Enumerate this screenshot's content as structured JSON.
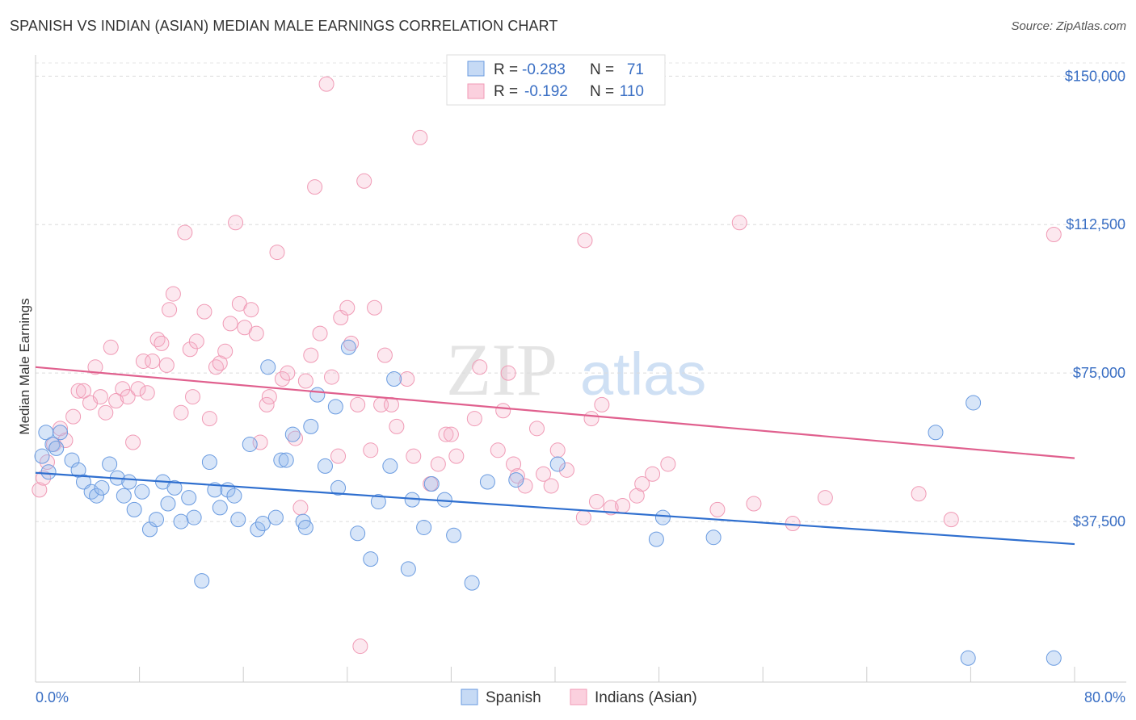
{
  "header": {
    "title": "SPANISH VS INDIAN (ASIAN) MEDIAN MALE EARNINGS CORRELATION CHART",
    "source": "Source: ZipAtlas.com"
  },
  "watermark": {
    "zip": "ZIP",
    "atlas": "atlas"
  },
  "legend_stats": [
    {
      "r_label": "R =",
      "r_value": "-0.283",
      "n_label": "N =",
      "n_value": "71"
    },
    {
      "r_label": "R =",
      "r_value": "-0.192",
      "n_label": "N =",
      "n_value": "110"
    }
  ],
  "bottom_legend": [
    "Spanish",
    "Indians (Asian)"
  ],
  "chart_data": {
    "type": "scatter",
    "title": "SPANISH VS INDIAN (ASIAN) MEDIAN MALE EARNINGS CORRELATION CHART",
    "ylabel": "Median Male Earnings",
    "xlabel": "",
    "xlim": [
      0,
      80
    ],
    "ylim": [
      0,
      157000
    ],
    "x_tick_labels": [
      "0.0%",
      "80.0%"
    ],
    "y_ticks": [
      37500,
      75000,
      112500,
      150000
    ],
    "y_tick_labels": [
      "$37,500",
      "$75,000",
      "$112,500",
      "$150,000"
    ],
    "grid": true,
    "legend_position": "top-center",
    "colors": {
      "spanish": "#6a9be0",
      "indian": "#f09ab5",
      "spanish_line": "#2f6fcf",
      "indian_line": "#e0608e",
      "tick_text": "#3a6fc4"
    },
    "series": [
      {
        "name": "Spanish",
        "r": -0.283,
        "n": 71,
        "trend": [
          [
            0,
            49800
          ],
          [
            80,
            31800
          ]
        ],
        "points": [
          [
            0.5,
            54000
          ],
          [
            0.8,
            60000
          ],
          [
            1.3,
            57000
          ],
          [
            1.6,
            56000
          ],
          [
            1.9,
            60000
          ],
          [
            2.8,
            53000
          ],
          [
            3.3,
            50500
          ],
          [
            3.7,
            47500
          ],
          [
            4.3,
            45000
          ],
          [
            4.7,
            44000
          ],
          [
            5.1,
            46000
          ],
          [
            5.7,
            52000
          ],
          [
            6.3,
            48500
          ],
          [
            6.8,
            44000
          ],
          [
            7.2,
            47500
          ],
          [
            7.6,
            40500
          ],
          [
            8.2,
            45000
          ],
          [
            8.8,
            35500
          ],
          [
            9.3,
            38000
          ],
          [
            9.8,
            47500
          ],
          [
            10.2,
            42000
          ],
          [
            10.7,
            46000
          ],
          [
            11.2,
            37500
          ],
          [
            11.8,
            43500
          ],
          [
            12.2,
            38500
          ],
          [
            12.8,
            22500
          ],
          [
            13.4,
            52500
          ],
          [
            13.8,
            45500
          ],
          [
            14.2,
            41000
          ],
          [
            14.8,
            45500
          ],
          [
            15.3,
            44000
          ],
          [
            15.6,
            38000
          ],
          [
            16.5,
            57000
          ],
          [
            17.1,
            35500
          ],
          [
            17.5,
            37000
          ],
          [
            17.9,
            76500
          ],
          [
            18.5,
            38500
          ],
          [
            18.9,
            53000
          ],
          [
            19.3,
            53000
          ],
          [
            19.8,
            59500
          ],
          [
            20.6,
            37500
          ],
          [
            20.8,
            36000
          ],
          [
            21.2,
            61500
          ],
          [
            21.7,
            69500
          ],
          [
            22.3,
            51500
          ],
          [
            23.1,
            66500
          ],
          [
            23.3,
            46000
          ],
          [
            24.1,
            81500
          ],
          [
            24.8,
            34500
          ],
          [
            25.8,
            28000
          ],
          [
            26.4,
            42500
          ],
          [
            27.3,
            51500
          ],
          [
            27.6,
            73500
          ],
          [
            28.7,
            25500
          ],
          [
            29.0,
            43000
          ],
          [
            29.9,
            36000
          ],
          [
            30.5,
            47000
          ],
          [
            31.5,
            43000
          ],
          [
            32.2,
            34000
          ],
          [
            33.6,
            22000
          ],
          [
            34.8,
            47500
          ],
          [
            37.0,
            48000
          ],
          [
            40.2,
            52000
          ],
          [
            47.8,
            33000
          ],
          [
            48.3,
            38500
          ],
          [
            52.2,
            33500
          ],
          [
            69.3,
            60000
          ],
          [
            72.2,
            67500
          ],
          [
            71.8,
            3000
          ],
          [
            78.4,
            3000
          ],
          [
            1.0,
            50000
          ]
        ]
      },
      {
        "name": "Indians (Asian)",
        "r": -0.192,
        "n": 110,
        "trend": [
          [
            0,
            76500
          ],
          [
            80,
            53500
          ]
        ],
        "points": [
          [
            0.3,
            45500
          ],
          [
            0.6,
            48500
          ],
          [
            0.9,
            52500
          ],
          [
            1.4,
            57000
          ],
          [
            1.9,
            61000
          ],
          [
            2.3,
            58000
          ],
          [
            2.9,
            64000
          ],
          [
            3.3,
            70500
          ],
          [
            3.7,
            70500
          ],
          [
            4.2,
            67500
          ],
          [
            4.6,
            76500
          ],
          [
            5.0,
            69000
          ],
          [
            5.4,
            65000
          ],
          [
            5.8,
            81500
          ],
          [
            6.2,
            68000
          ],
          [
            6.7,
            71000
          ],
          [
            7.1,
            69000
          ],
          [
            7.5,
            57500
          ],
          [
            7.9,
            71000
          ],
          [
            8.3,
            78000
          ],
          [
            8.6,
            70000
          ],
          [
            9.0,
            78000
          ],
          [
            9.4,
            83500
          ],
          [
            9.7,
            82500
          ],
          [
            10.1,
            77000
          ],
          [
            10.3,
            91000
          ],
          [
            10.6,
            95000
          ],
          [
            11.2,
            65000
          ],
          [
            11.5,
            110500
          ],
          [
            11.9,
            81000
          ],
          [
            12.1,
            69000
          ],
          [
            12.4,
            83000
          ],
          [
            13.0,
            90500
          ],
          [
            13.4,
            63500
          ],
          [
            13.9,
            76500
          ],
          [
            14.2,
            77500
          ],
          [
            14.6,
            80500
          ],
          [
            15.0,
            87500
          ],
          [
            15.4,
            113000
          ],
          [
            15.7,
            92500
          ],
          [
            16.1,
            86500
          ],
          [
            16.6,
            91000
          ],
          [
            17.0,
            85000
          ],
          [
            17.3,
            57500
          ],
          [
            17.8,
            67000
          ],
          [
            18.0,
            69000
          ],
          [
            18.6,
            105500
          ],
          [
            19.0,
            73500
          ],
          [
            19.4,
            75000
          ],
          [
            20.0,
            58500
          ],
          [
            20.4,
            41000
          ],
          [
            20.8,
            73000
          ],
          [
            21.2,
            79500
          ],
          [
            21.5,
            122000
          ],
          [
            21.9,
            85000
          ],
          [
            22.4,
            148000
          ],
          [
            22.8,
            74000
          ],
          [
            23.3,
            54000
          ],
          [
            23.5,
            89000
          ],
          [
            24.0,
            91500
          ],
          [
            24.3,
            82500
          ],
          [
            24.8,
            67000
          ],
          [
            25.3,
            123500
          ],
          [
            25.8,
            55500
          ],
          [
            26.1,
            91500
          ],
          [
            26.6,
            67000
          ],
          [
            26.9,
            79500
          ],
          [
            27.4,
            67000
          ],
          [
            27.8,
            61500
          ],
          [
            28.6,
            73500
          ],
          [
            29.1,
            54000
          ],
          [
            29.6,
            134500
          ],
          [
            30.4,
            47000
          ],
          [
            31.0,
            52000
          ],
          [
            31.6,
            59500
          ],
          [
            32.0,
            59500
          ],
          [
            32.4,
            54000
          ],
          [
            33.8,
            63500
          ],
          [
            34.2,
            76500
          ],
          [
            35.6,
            55500
          ],
          [
            36.0,
            65500
          ],
          [
            36.4,
            75000
          ],
          [
            36.8,
            52000
          ],
          [
            37.1,
            49000
          ],
          [
            37.7,
            46500
          ],
          [
            38.6,
            61000
          ],
          [
            39.1,
            49500
          ],
          [
            39.7,
            46500
          ],
          [
            40.2,
            55500
          ],
          [
            40.9,
            50500
          ],
          [
            42.2,
            38500
          ],
          [
            42.8,
            63500
          ],
          [
            43.2,
            42500
          ],
          [
            43.6,
            67000
          ],
          [
            44.3,
            41000
          ],
          [
            45.2,
            41500
          ],
          [
            46.3,
            44000
          ],
          [
            46.7,
            47000
          ],
          [
            47.5,
            49500
          ],
          [
            48.7,
            52000
          ],
          [
            52.5,
            40500
          ],
          [
            54.2,
            113000
          ],
          [
            55.3,
            42000
          ],
          [
            58.3,
            37000
          ],
          [
            60.8,
            43500
          ],
          [
            68.0,
            44500
          ],
          [
            70.5,
            38000
          ],
          [
            78.4,
            110000
          ],
          [
            25.0,
            6000
          ],
          [
            42.3,
            108500
          ]
        ]
      }
    ]
  }
}
